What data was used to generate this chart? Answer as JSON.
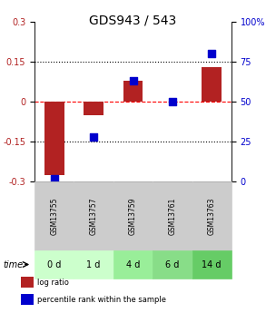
{
  "title": "GDS943 / 543",
  "samples": [
    "GSM13755",
    "GSM13757",
    "GSM13759",
    "GSM13761",
    "GSM13763"
  ],
  "time_labels": [
    "0 d",
    "1 d",
    "4 d",
    "6 d",
    "14 d"
  ],
  "log_ratio": [
    -0.275,
    -0.05,
    0.08,
    0.0,
    0.13
  ],
  "percentile": [
    2,
    28,
    63,
    50,
    80
  ],
  "bar_color": "#b22222",
  "dot_color": "#0000cd",
  "ylim_left": [
    -0.3,
    0.3
  ],
  "ylim_right": [
    0,
    100
  ],
  "yticks_left": [
    -0.3,
    -0.15,
    0.0,
    0.15,
    0.3
  ],
  "ytick_labels_left": [
    "-0.3",
    "-0.15",
    "0",
    "0.15",
    "0.3"
  ],
  "yticks_right": [
    0,
    25,
    50,
    75,
    100
  ],
  "ytick_labels_right": [
    "0",
    "25",
    "50",
    "75",
    "100%"
  ],
  "hlines": [
    0.15,
    0.0,
    -0.15
  ],
  "hline_styles": [
    "dotted",
    "dashed",
    "dotted"
  ],
  "hline_colors": [
    "black",
    "red",
    "black"
  ],
  "time_row_colors": [
    "#ccffcc",
    "#ccffcc",
    "#99ee99",
    "#88dd88",
    "#66cc66"
  ],
  "sample_row_color": "#cccccc",
  "legend_items": [
    {
      "color": "#b22222",
      "label": "log ratio"
    },
    {
      "color": "#0000cd",
      "label": "percentile rank within the sample"
    }
  ],
  "bar_width": 0.5
}
